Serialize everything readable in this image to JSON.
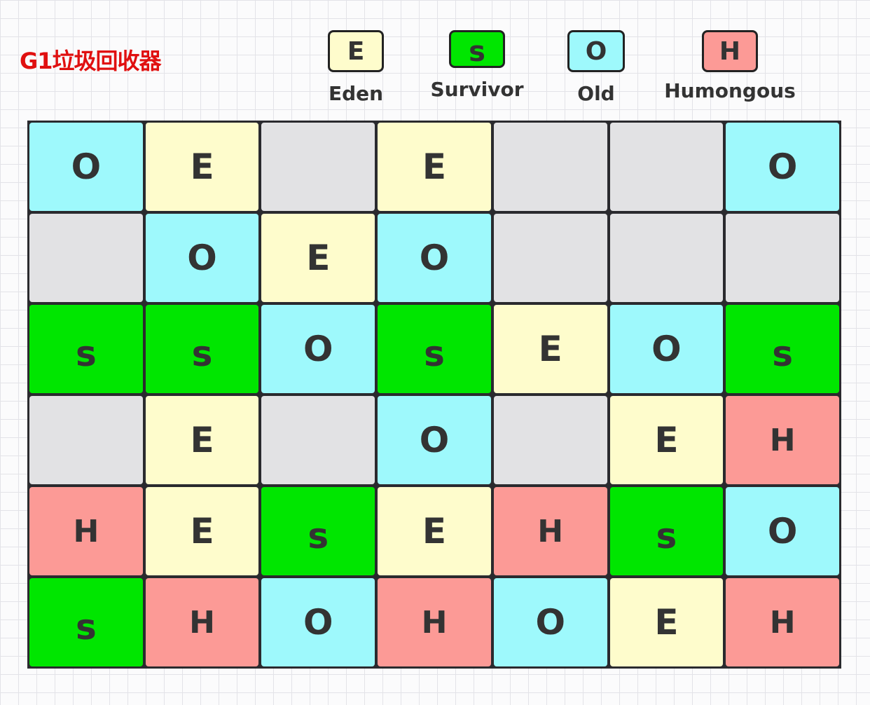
{
  "title": "G1垃圾回收器",
  "colors": {
    "E": "#fefccc",
    "S": "#00e600",
    "O": "#9ef9fc",
    "H": "#fc9a96",
    "free": "#e2e2e4"
  },
  "legend": [
    {
      "type": "E",
      "letter": "E",
      "label": "Eden"
    },
    {
      "type": "S",
      "letter": "s",
      "label": "Survivor"
    },
    {
      "type": "O",
      "letter": "O",
      "label": "Old"
    },
    {
      "type": "H",
      "letter": "H",
      "label": "Humongous"
    }
  ],
  "regions": [
    [
      "O",
      "E",
      "",
      "E",
      "",
      "",
      "O"
    ],
    [
      "",
      "O",
      "E",
      "O",
      "",
      "",
      ""
    ],
    [
      "S",
      "S",
      "O",
      "S",
      "E",
      "O",
      "S"
    ],
    [
      "",
      "E",
      "",
      "O",
      "",
      "E",
      "H"
    ],
    [
      "H",
      "E",
      "S",
      "E",
      "H",
      "S",
      "O"
    ],
    [
      "S",
      "H",
      "O",
      "H",
      "O",
      "E",
      "H"
    ]
  ]
}
